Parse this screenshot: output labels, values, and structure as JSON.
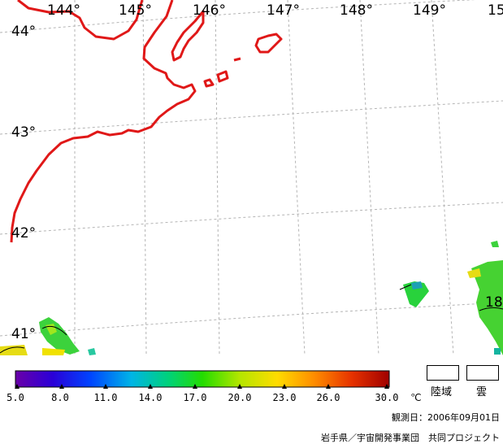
{
  "map": {
    "lon_labels": [
      "144°",
      "145°",
      "146°",
      "147°",
      "148°",
      "149°",
      "15"
    ],
    "lat_labels": [
      "44°",
      "43°",
      "42°",
      "41°"
    ],
    "coastline_color": "#e01818",
    "grid_color": "#b4b4b4",
    "contour_label": "18"
  },
  "legend": {
    "ticks": [
      "5.0",
      "8.0",
      "11.0",
      "14.0",
      "17.0",
      "20.0",
      "23.0",
      "26.0",
      "30.0"
    ],
    "unit": "℃",
    "colors": [
      "#6a00a8",
      "#2a00d8",
      "#0044ff",
      "#00b4e6",
      "#00d27a",
      "#23dc00",
      "#b4e600",
      "#ffdc00",
      "#ff8c00",
      "#e63200",
      "#a00000"
    ],
    "land_label": "陸域",
    "cloud_label": "雲"
  },
  "observation": "観測日：2006年09月01日",
  "credit": "岩手県／宇宙開発事業団　共同プロジェクト"
}
